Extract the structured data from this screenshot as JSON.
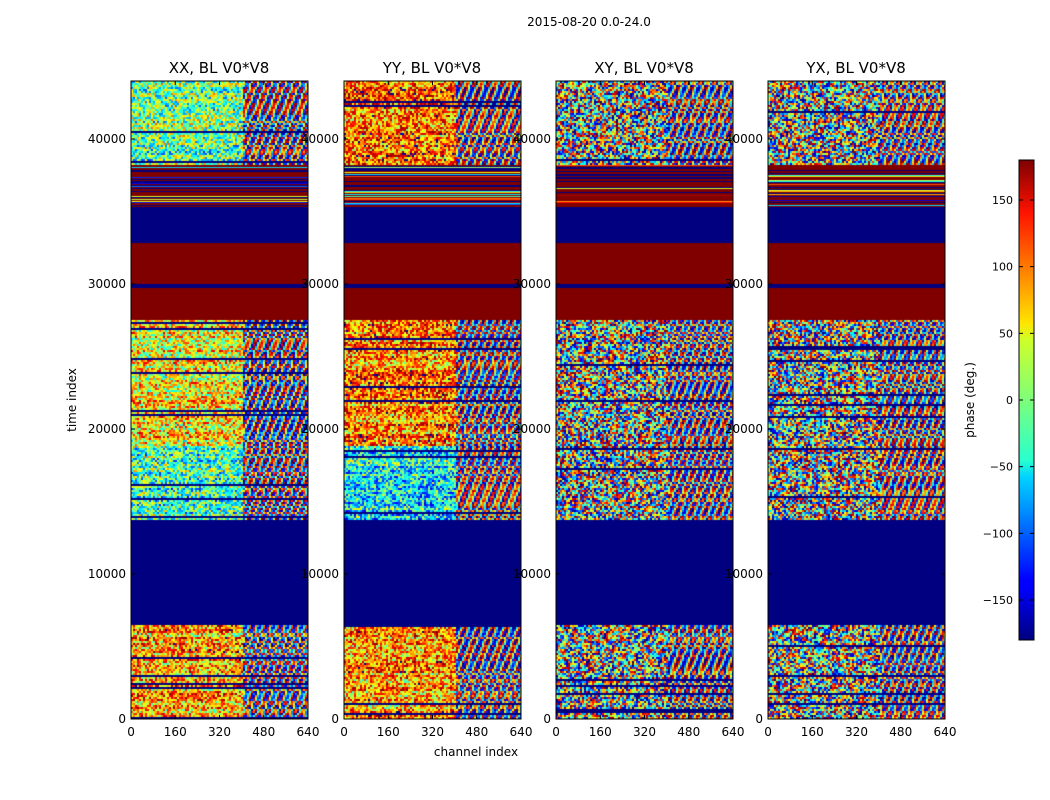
{
  "chart_data": {
    "type": "heatmap",
    "suptitle": "2015-08-20 0.0-24.0",
    "xlabel": "channel index",
    "ylabel": "time index",
    "xlim": [
      0,
      640
    ],
    "ylim": [
      0,
      44000
    ],
    "xticks": [
      0,
      160,
      320,
      480,
      640
    ],
    "yticks": [
      0,
      10000,
      20000,
      30000,
      40000
    ],
    "colorbar": {
      "label": "phase (deg.)",
      "range": [
        -180,
        180
      ],
      "ticks": [
        -150,
        -100,
        -50,
        0,
        50,
        100,
        150
      ],
      "colormap": "jet"
    },
    "panels": [
      {
        "title": "XX, BL V0*V8"
      },
      {
        "title": "YY, BL V0*V8"
      },
      {
        "title": "XY, BL V0*V8"
      },
      {
        "title": "YX, BL V0*V8"
      }
    ],
    "flagged_phase_value": -180,
    "time_bands": [
      {
        "t0": 0,
        "t1": 6500,
        "kind": "noise"
      },
      {
        "t0": 6500,
        "t1": 13700,
        "kind": "flagged"
      },
      {
        "t0": 13700,
        "t1": 18800,
        "kind": "noise"
      },
      {
        "t0": 18800,
        "t1": 27500,
        "kind": "noise"
      },
      {
        "t0": 27500,
        "t1": 29700,
        "kind": "solid",
        "phase": 180
      },
      {
        "t0": 29700,
        "t1": 30000,
        "kind": "solid",
        "phase": -180
      },
      {
        "t0": 30000,
        "t1": 32800,
        "kind": "solid",
        "phase": 180
      },
      {
        "t0": 32800,
        "t1": 35300,
        "kind": "flagged"
      },
      {
        "t0": 35300,
        "t1": 38200,
        "kind": "striped",
        "phase": 180
      },
      {
        "t0": 38200,
        "t1": 44000,
        "kind": "noise"
      }
    ]
  }
}
